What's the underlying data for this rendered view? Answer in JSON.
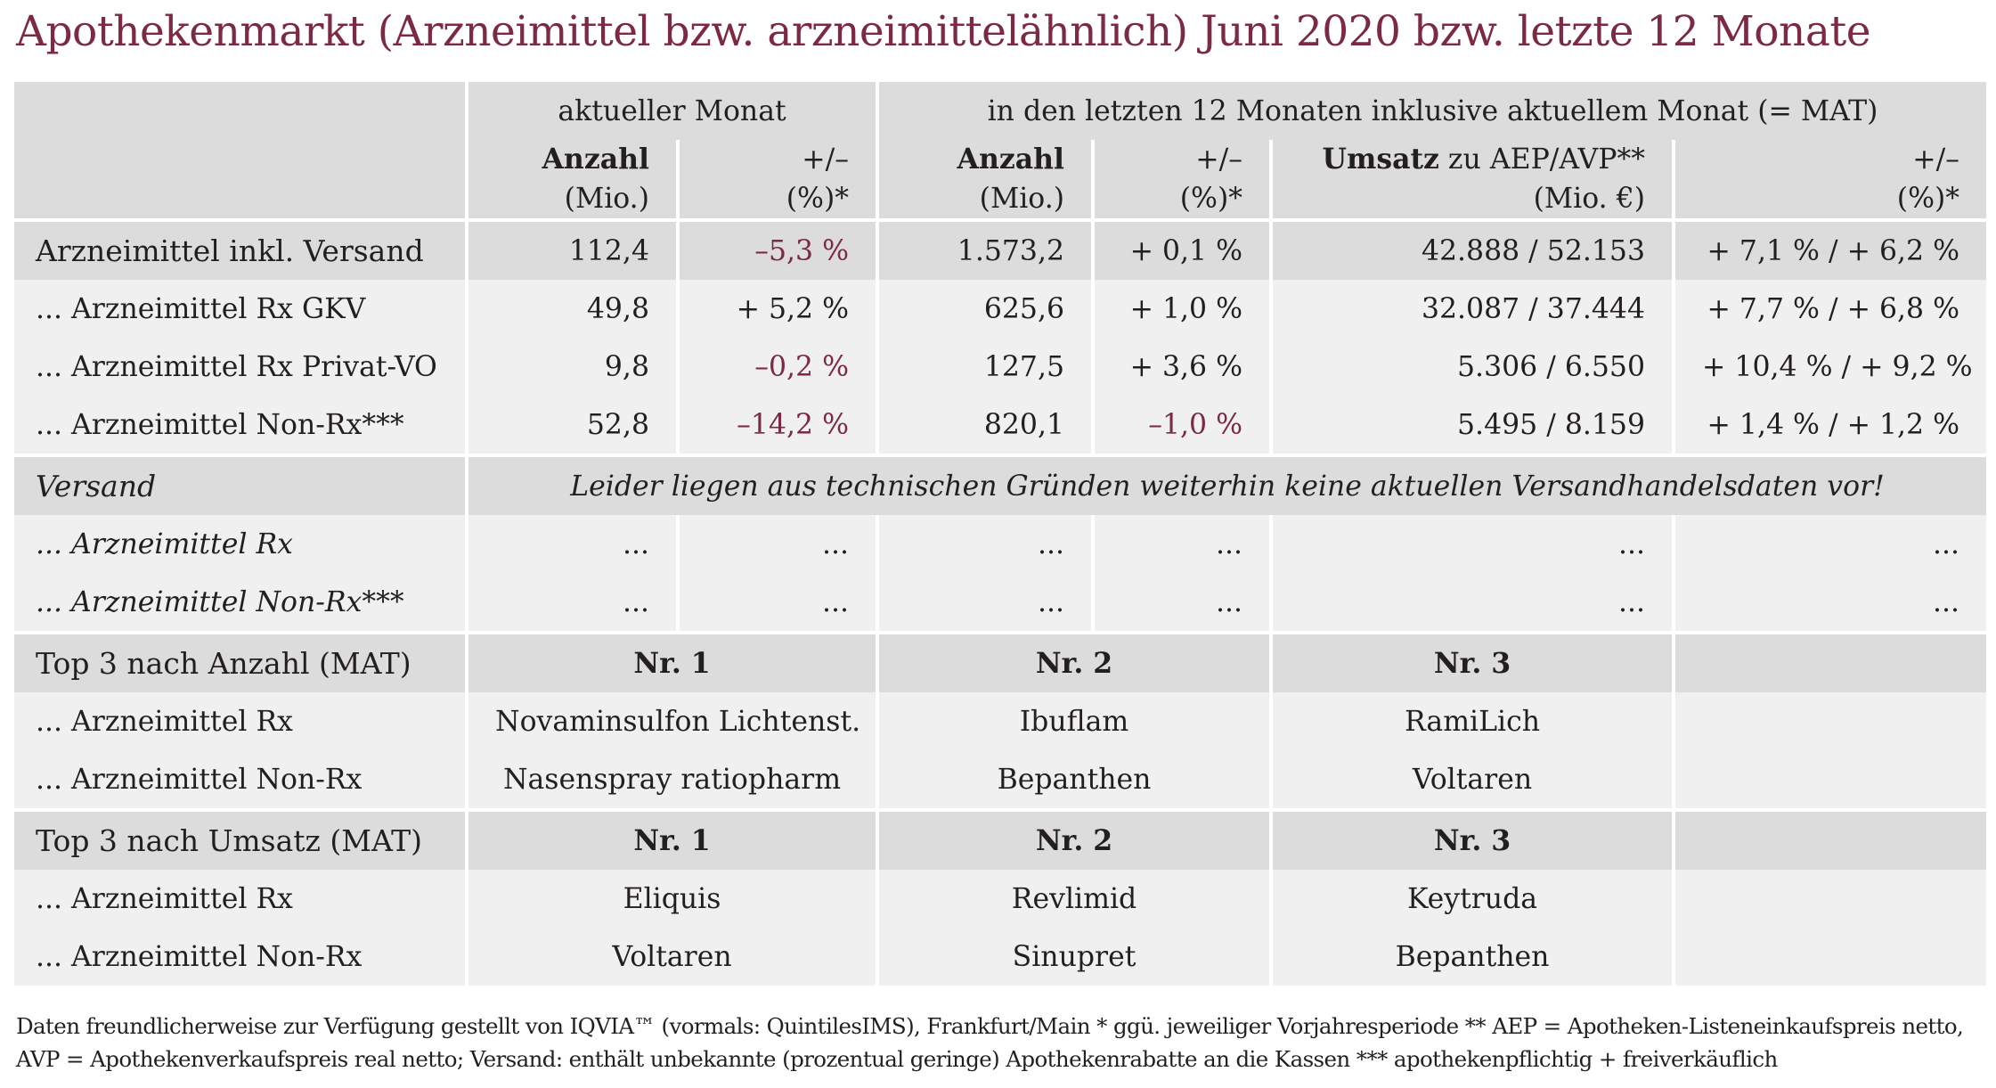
{
  "title": "Apothekenmarkt (Arzneimittel bzw. arzneimittelähnlich) Juni 2020 bzw. letzte 12 Monate",
  "header": {
    "group_current": "aktueller Monat",
    "group_mat": "in den letzten 12 Monaten inklusive aktuellem Monat (= MAT)",
    "count_label": "Anzahl",
    "count_unit": "(Mio.)",
    "change_label": "+/–",
    "change_unit": "(%)*",
    "revenue_label_bold": "Umsatz",
    "revenue_label_rest": " zu AEP/AVP**",
    "revenue_unit": "(Mio. €)"
  },
  "rows": [
    {
      "label": "Arzneimittel inkl. Versand",
      "count": "112,4",
      "change": "–5,3 %",
      "mat_count": "1.573,2",
      "mat_change": "+ 0,1 %",
      "revenue": "42.888 / 52.153",
      "revenue_change": "+ 7,1 % / + 6,2 %"
    },
    {
      "label": "... Arzneimittel Rx GKV",
      "count": "49,8",
      "change": "+ 5,2 %",
      "mat_count": "625,6",
      "mat_change": "+ 1,0 %",
      "revenue": "32.087 / 37.444",
      "revenue_change": "+ 7,7 % / + 6,8 %"
    },
    {
      "label": "... Arzneimittel Rx Privat-VO",
      "count": "9,8",
      "change": "–0,2 %",
      "mat_count": "127,5",
      "mat_change": "+ 3,6 %",
      "revenue": "5.306 / 6.550",
      "revenue_change": "+ 10,4 % / + 9,2 %"
    },
    {
      "label": "... Arzneimittel Non-Rx***",
      "count": "52,8",
      "change": "–14,2 %",
      "mat_count": "820,1",
      "mat_change": "–1,0 %",
      "revenue": "5.495 / 8.159",
      "revenue_change": "+ 1,4 % / + 1,2 %"
    }
  ],
  "versand": {
    "label": "Versand",
    "notice": "Leider liegen aus technischen Gründen weiterhin keine aktuellen Versandhandelsdaten vor!",
    "rows": [
      {
        "label": "... Arzneimittel Rx",
        "count": "...",
        "change": "...",
        "mat_count": "...",
        "mat_change": "...",
        "revenue": "...",
        "revenue_change": "..."
      },
      {
        "label": "... Arzneimittel Non-Rx***",
        "count": "...",
        "change": "...",
        "mat_count": "...",
        "mat_change": "...",
        "revenue": "...",
        "revenue_change": "..."
      }
    ]
  },
  "top_count": {
    "label": "Top 3 nach Anzahl (MAT)",
    "ranks": [
      "Nr. 1",
      "Nr. 2",
      "Nr. 3"
    ],
    "rows": [
      {
        "label": "... Arzneimittel Rx",
        "items": [
          "Novaminsulfon Lichtenst.",
          "Ibuflam",
          "RamiLich"
        ]
      },
      {
        "label": "... Arzneimittel Non-Rx",
        "items": [
          "Nasenspray ratiopharm",
          "Bepanthen",
          "Voltaren"
        ]
      }
    ]
  },
  "top_revenue": {
    "label": "Top 3 nach Umsatz (MAT)",
    "ranks": [
      "Nr. 1",
      "Nr. 2",
      "Nr. 3"
    ],
    "rows": [
      {
        "label": "... Arzneimittel Rx",
        "items": [
          "Eliquis",
          "Revlimid",
          "Keytruda"
        ]
      },
      {
        "label": "... Arzneimittel Non-Rx",
        "items": [
          "Voltaren",
          "Sinupret",
          "Bepanthen"
        ]
      }
    ]
  },
  "footer": {
    "line1": "Daten freundlicherweise zur Verfügung gestellt von IQVIA™ (vormals: QuintilesIMS), Frankfurt/Main  * ggü. jeweiliger Vorjahresperiode  ** AEP = Apotheken-Listeneinkaufspreis netto,",
    "line2": "AVP = Apothekenverkaufspreis real netto; Versand: enthält unbekannte (prozentual geringe) Apothekenrabatte an die Kassen    *** apothekenpflichtig + freiverkäuflich"
  },
  "colors": {
    "accent": "#7b2a42",
    "header_bg": "#dcdcdc",
    "row_bg": "#f0f0f0"
  }
}
